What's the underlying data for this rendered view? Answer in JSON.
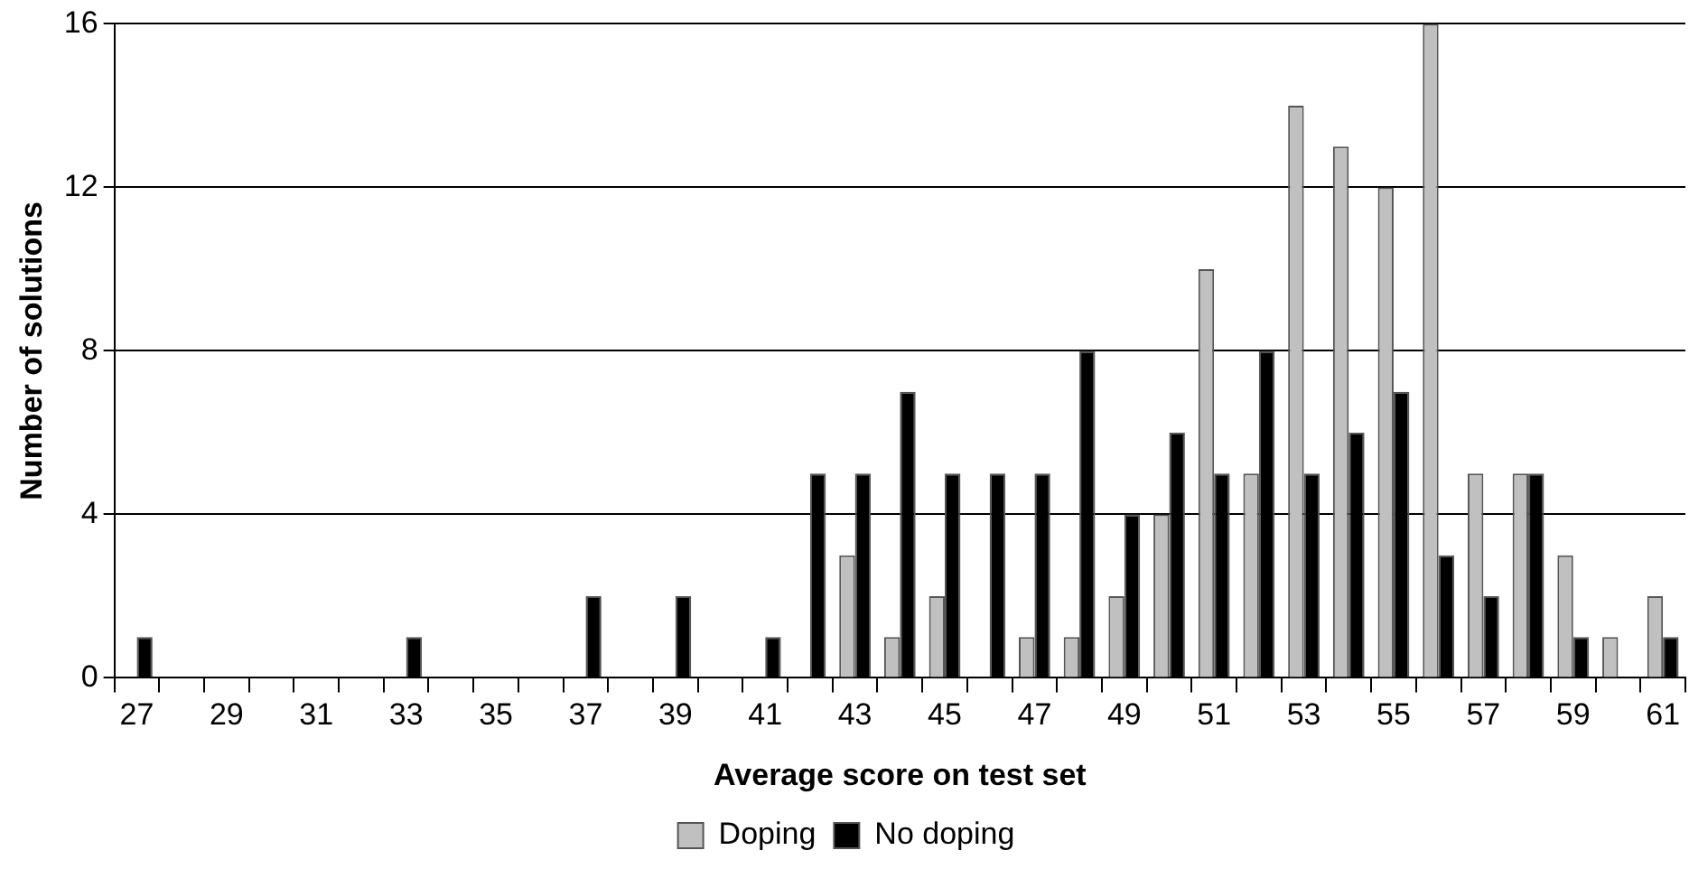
{
  "chart_data": {
    "type": "bar",
    "xlabel": "Average score on test set",
    "ylabel": "Number of solutions",
    "categories": [
      "27",
      null,
      "29",
      null,
      "31",
      null,
      "33",
      null,
      "35",
      null,
      "37",
      null,
      "39",
      null,
      "41",
      null,
      "43",
      null,
      "45",
      null,
      "47",
      null,
      "49",
      null,
      "51",
      null,
      "53",
      null,
      "55",
      null,
      "57",
      null,
      "59",
      null,
      "61"
    ],
    "series": [
      {
        "name": "Doping",
        "color": "#c0c0c0",
        "values": [
          0,
          0,
          0,
          0,
          0,
          0,
          0,
          0,
          0,
          0,
          0,
          0,
          0,
          0,
          0,
          0,
          3,
          1,
          2,
          0,
          1,
          1,
          2,
          4,
          10,
          5,
          14,
          13,
          12,
          16,
          5,
          5,
          3,
          1,
          2
        ]
      },
      {
        "name": "No doping",
        "color": "#000000",
        "values": [
          1,
          0,
          0,
          0,
          0,
          0,
          1,
          0,
          0,
          0,
          2,
          0,
          2,
          0,
          1,
          5,
          5,
          7,
          5,
          5,
          5,
          8,
          4,
          6,
          5,
          8,
          5,
          6,
          7,
          3,
          2,
          5,
          1,
          0,
          1
        ]
      }
    ],
    "ylim": [
      0,
      16
    ],
    "yticks": [
      0,
      4,
      8,
      12,
      16
    ],
    "grid": "y",
    "legend": "bottom"
  }
}
